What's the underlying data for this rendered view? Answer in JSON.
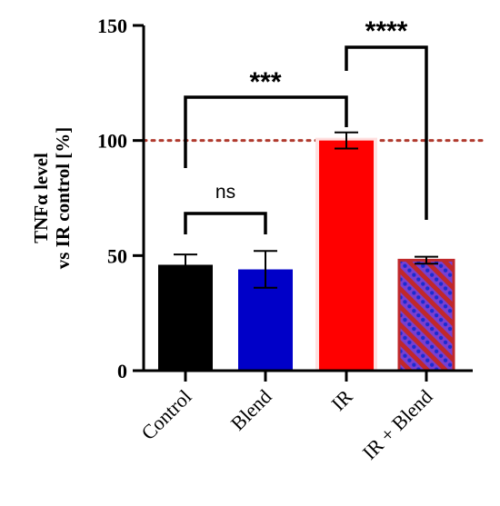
{
  "chart_data": {
    "type": "bar",
    "title": "",
    "ylabel_lines": [
      "TNFα level",
      "vs IR control [%]"
    ],
    "xlabel": "",
    "ylim": [
      0,
      150
    ],
    "yticks": [
      0,
      50,
      100,
      150
    ],
    "categories": [
      "Control",
      "Blend",
      "IR",
      "IR + Blend"
    ],
    "values": [
      46,
      44,
      100,
      48
    ],
    "errors": [
      4.5,
      8,
      3.5,
      1.5
    ],
    "bar_colors": [
      "#000000",
      "#0000c8",
      "#ff0000",
      "#cc2222"
    ],
    "bar_patterns": [
      "solid",
      "solid",
      "solid",
      "hatched-dots"
    ],
    "reference_line": {
      "value": 100,
      "style": "dotted",
      "color": "#b03a2e"
    },
    "grid": false,
    "legend": "none",
    "significance": [
      {
        "from": 0,
        "to": 1,
        "label": "ns"
      },
      {
        "from": 0,
        "to": 2,
        "label": "***"
      },
      {
        "from": 2,
        "to": 3,
        "label": "****"
      }
    ]
  }
}
